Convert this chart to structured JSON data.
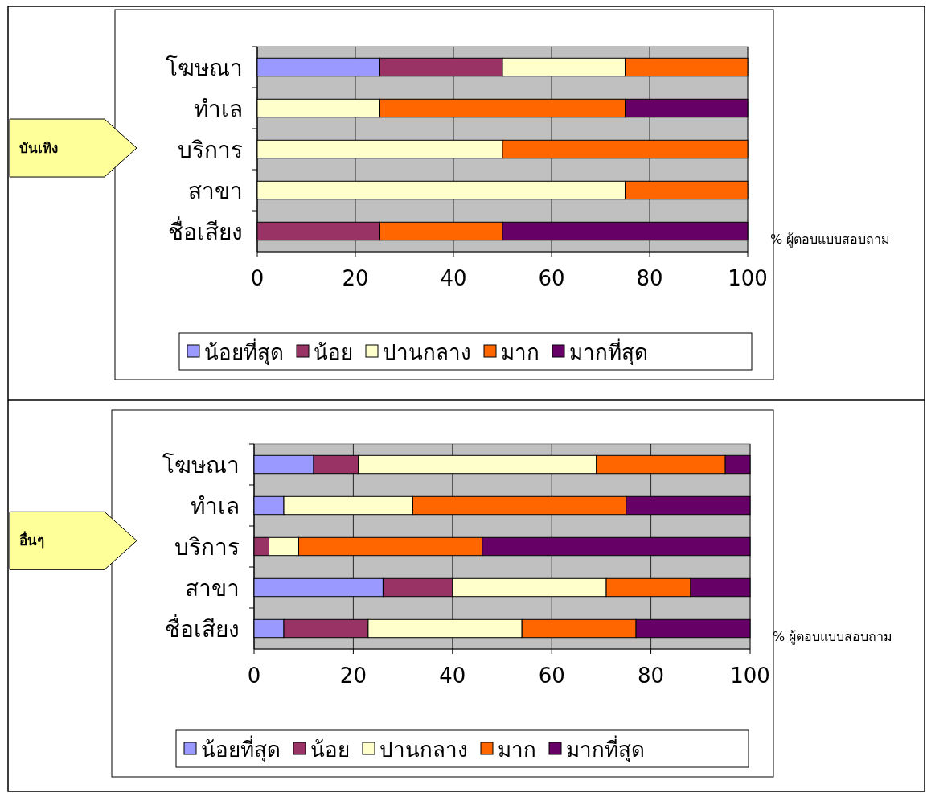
{
  "chart_data": [
    {
      "type": "bar",
      "annotations": [
        "บันเทิง"
      ],
      "orientation": "horizontal",
      "stacked": true,
      "xlabel": "% ผู้ตอบแบบสอบถาม",
      "categories": [
        "โฆษณา",
        "ทำเล",
        "บริการ",
        "สาขา",
        "ชื่อเสียง"
      ],
      "xlim": [
        0,
        100
      ],
      "xticks": [
        0,
        20,
        40,
        60,
        80,
        100
      ],
      "grid": "x",
      "legend": "bottom",
      "series": [
        {
          "name": "น้อยที่สุด",
          "color": "#9999ff",
          "values": [
            25,
            0,
            0,
            0,
            0
          ]
        },
        {
          "name": "น้อย",
          "color": "#993366",
          "values": [
            25,
            0,
            0,
            0,
            25
          ]
        },
        {
          "name": "ปานกลาง",
          "color": "#ffffcc",
          "values": [
            25,
            25,
            50,
            75,
            0
          ]
        },
        {
          "name": "มาก",
          "color": "#ff6600",
          "values": [
            25,
            50,
            50,
            25,
            25
          ]
        },
        {
          "name": "มากที่สุด",
          "color": "#660066",
          "values": [
            0,
            25,
            0,
            0,
            50
          ]
        }
      ]
    },
    {
      "type": "bar",
      "annotations": [
        "อื่นๆ"
      ],
      "orientation": "horizontal",
      "stacked": true,
      "xlabel": "% ผู้ตอบแบบสอบถาม",
      "categories": [
        "โฆษณา",
        "ทำเล",
        "บริการ",
        "สาขา",
        "ชื่อเสียง"
      ],
      "xlim": [
        0,
        100
      ],
      "xticks": [
        0,
        20,
        40,
        60,
        80,
        100
      ],
      "grid": "x",
      "legend": "bottom",
      "series": [
        {
          "name": "น้อยที่สุด",
          "color": "#9999ff",
          "values": [
            12,
            6,
            0,
            26,
            6
          ]
        },
        {
          "name": "น้อย",
          "color": "#993366",
          "values": [
            9,
            0,
            3,
            14,
            17
          ]
        },
        {
          "name": "ปานกลาง",
          "color": "#ffffcc",
          "values": [
            48,
            26,
            6,
            31,
            31
          ]
        },
        {
          "name": "มาก",
          "color": "#ff6600",
          "values": [
            26,
            43,
            37,
            17,
            23
          ]
        },
        {
          "name": "มากที่สุด",
          "color": "#660066",
          "values": [
            5,
            25,
            54,
            12,
            23
          ]
        }
      ]
    }
  ]
}
